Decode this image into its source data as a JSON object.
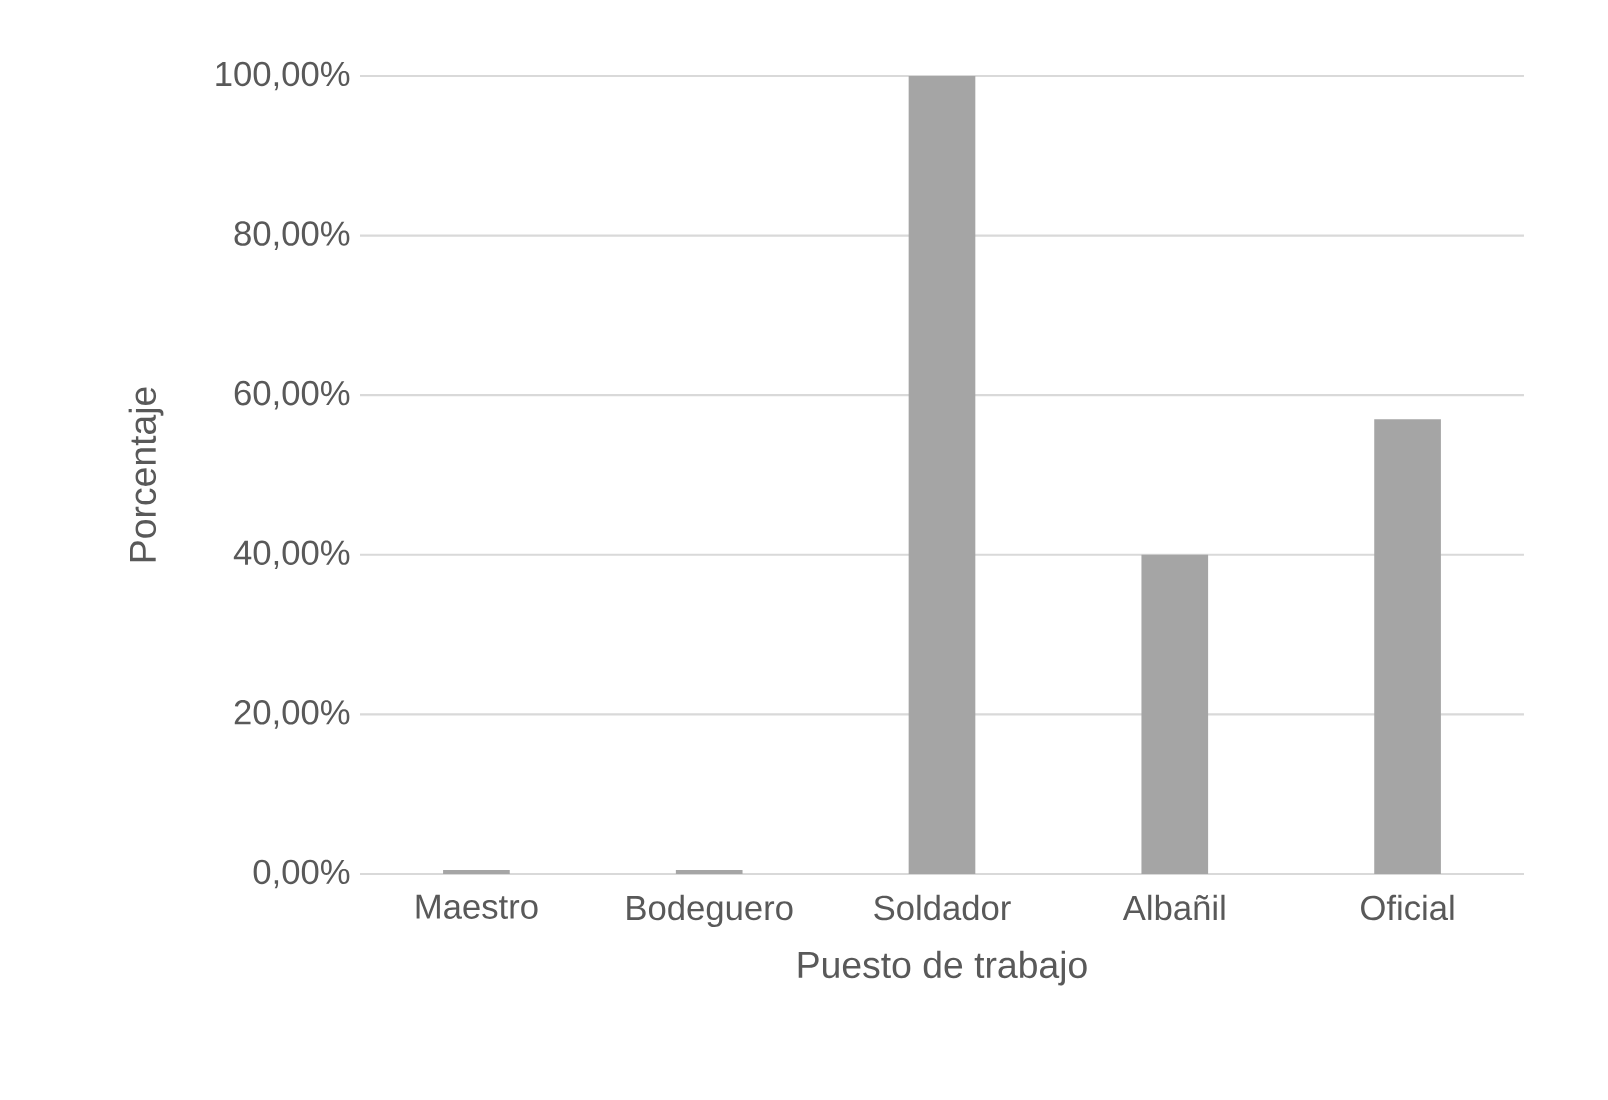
{
  "chart_data": {
    "type": "bar",
    "xlabel": "Puesto de trabajo",
    "ylabel": "Porcentaje",
    "categories": [
      "Maestro",
      "Bodeguero",
      "Soldador",
      "Albañil",
      "Oficial"
    ],
    "values": [
      0.5,
      0.5,
      100,
      40,
      57
    ],
    "color": "#a5a5a5",
    "ylim": [
      0,
      100
    ],
    "yticks": [
      {
        "value": 0,
        "label": "0,00%"
      },
      {
        "value": 20,
        "label": "20,00%"
      },
      {
        "value": 40,
        "label": "40,00%"
      },
      {
        "value": 60,
        "label": "60,00%"
      },
      {
        "value": 80,
        "label": "80,00%"
      },
      {
        "value": 100,
        "label": "100,00%"
      }
    ],
    "grid": "y"
  }
}
